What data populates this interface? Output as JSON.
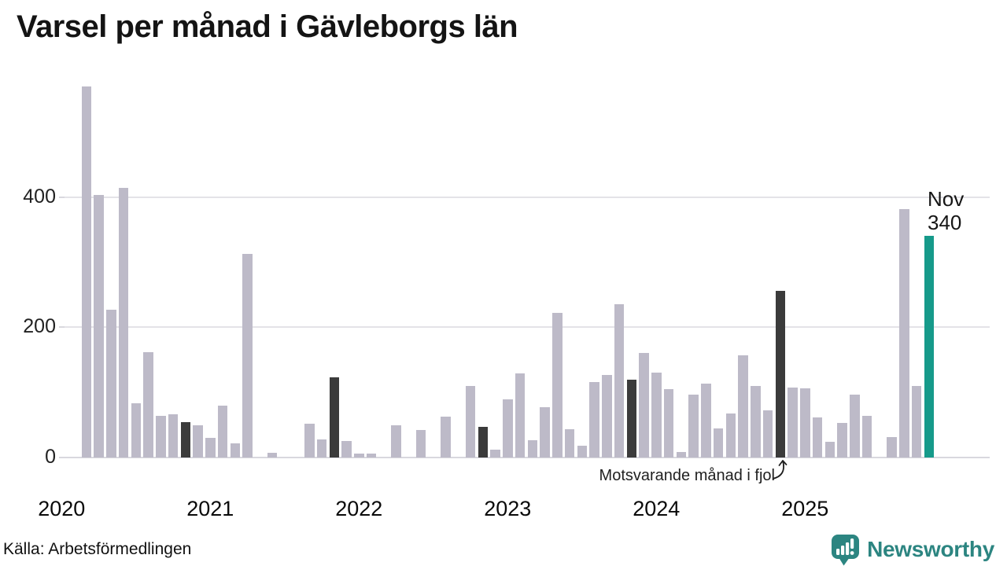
{
  "title": "Varsel per månad i Gävleborgs län",
  "source": "Källa: Arbetsförmedlingen",
  "logo": {
    "name": "Newsworthy"
  },
  "annotation": {
    "text": "Motsvarande månad i fjol",
    "points_to": "Nov 2024"
  },
  "colors": {
    "background": "#ffffff",
    "bar_default": "#bdbac8",
    "bar_previous_november": "#3b3b3b",
    "bar_current_november": "#169a8a",
    "gridline": "#e4e3e8",
    "logo_teal": "#2c8581",
    "text": "#161616"
  },
  "chart_data": {
    "type": "bar",
    "title": "Varsel per månad i Gävleborgs län",
    "xlabel": "",
    "ylabel": "",
    "ylim": [
      0,
      582
    ],
    "yticks": [
      0,
      200,
      400
    ],
    "grid": true,
    "x_tick_labels": [
      "2020",
      "2021",
      "2022",
      "2023",
      "2024",
      "2025"
    ],
    "highlight_month_index": 10,
    "highlight_rule": "November of past years dark gray, November 2025 teal",
    "series_by_year": [
      {
        "year": 2020,
        "values": [
          0,
          0,
          570,
          403,
          227,
          414,
          83,
          162,
          64,
          67,
          55,
          49
        ]
      },
      {
        "year": 2021,
        "values": [
          30,
          80,
          22,
          313,
          0,
          7,
          0,
          0,
          52,
          28,
          123,
          26
        ]
      },
      {
        "year": 2022,
        "values": [
          6,
          6,
          0,
          49,
          0,
          42,
          0,
          63,
          0,
          110,
          47,
          12
        ]
      },
      {
        "year": 2023,
        "values": [
          90,
          129,
          27,
          77,
          222,
          43,
          18,
          116,
          127,
          236,
          120,
          161
        ]
      },
      {
        "year": 2024,
        "values": [
          131,
          105,
          8,
          97,
          113,
          45,
          68,
          157,
          110,
          72,
          256,
          108
        ]
      },
      {
        "year": 2025,
        "values": [
          106,
          62,
          24,
          53,
          97,
          64,
          0,
          31,
          382,
          110,
          340
        ]
      }
    ],
    "current_label": {
      "month": "Nov",
      "value": "340"
    }
  }
}
